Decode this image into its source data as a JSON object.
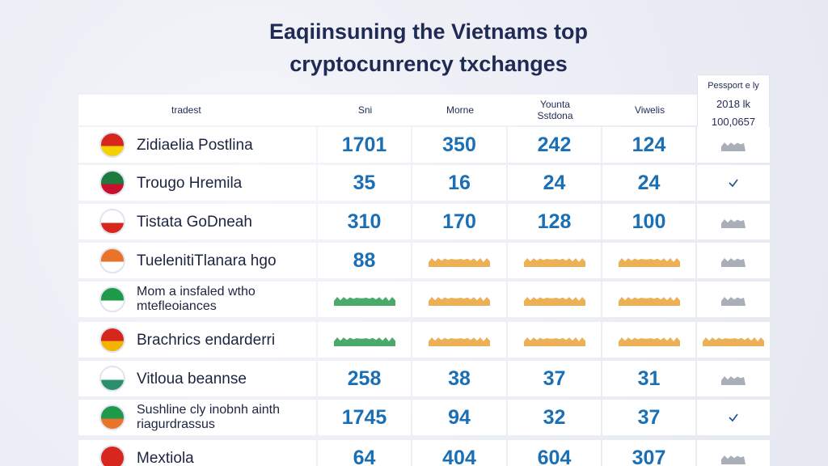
{
  "title": [
    "Eaqiinsuning the Vietnams top",
    "cryptocunrency txchanges"
  ],
  "table": {
    "headers": [
      "tradest",
      "Sni",
      "Morne",
      "Younta Sstdona",
      "Viwelis"
    ],
    "side_header": [
      "Pessport e ly",
      "2018 lk",
      "100,0657"
    ],
    "rows": [
      {
        "name": "Zidiaelia Postlina",
        "values": [
          1701,
          350,
          242,
          124
        ]
      },
      {
        "name": "Trougo Hremila",
        "values": [
          35,
          16,
          24,
          24
        ]
      },
      {
        "name": "Tistata GoDneah",
        "values": [
          310,
          170,
          128,
          100
        ]
      },
      {
        "name": "TuelenitiTlanara hgo",
        "values": [
          88
        ]
      },
      {
        "name": "Mom a insfaled wtho mtefleoiances"
      },
      {
        "name": "Brachrics endarderri"
      },
      {
        "name": "Vitloua beannse",
        "values": [
          258,
          38,
          37,
          31
        ]
      },
      {
        "name": "Sushline cly inobnh ainth riagurdrassus",
        "values": [
          1745,
          94,
          32,
          37
        ]
      },
      {
        "name": "Mextiola",
        "values": [
          64,
          404,
          604,
          307
        ]
      }
    ]
  }
}
